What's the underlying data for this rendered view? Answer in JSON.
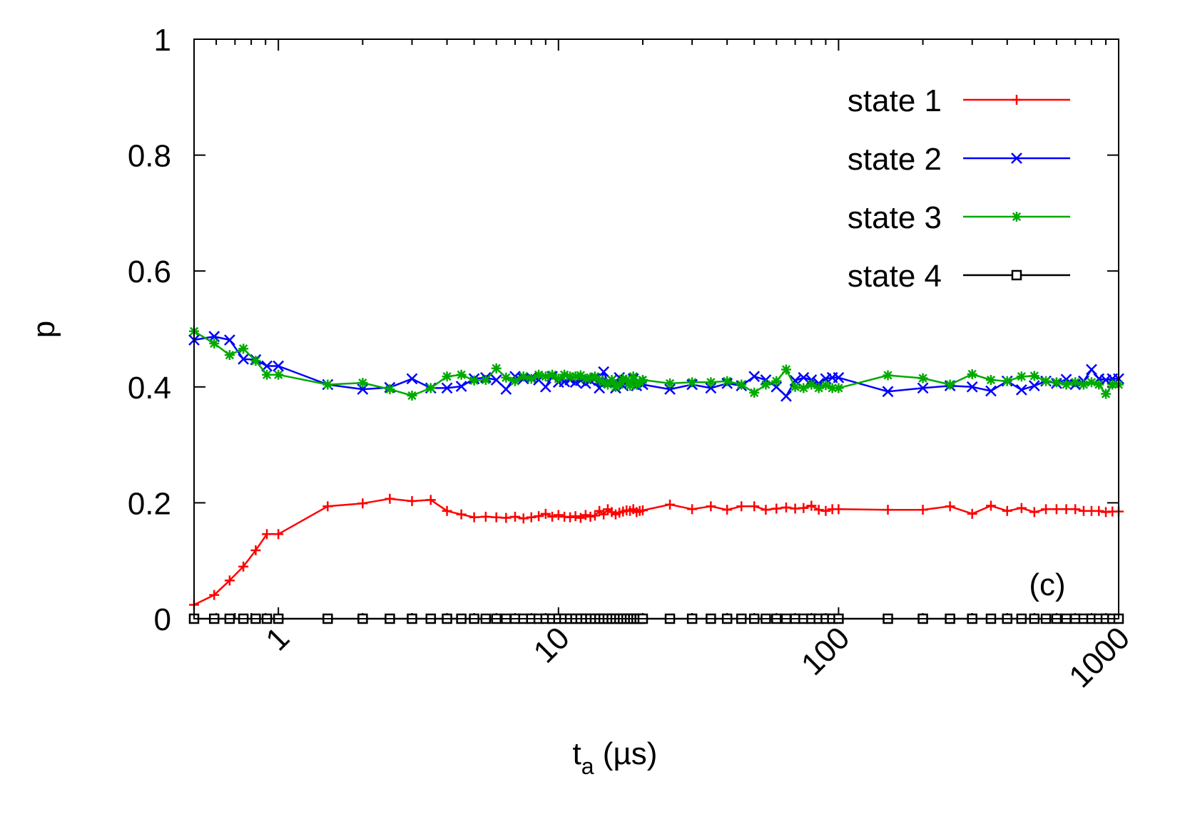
{
  "chart_data": {
    "type": "line",
    "xlabel_main": "t",
    "xlabel_sub": "a",
    "xlabel_rest": " (µs)",
    "ylabel": "p",
    "xscale": "log",
    "xlim": [
      0.5,
      1000
    ],
    "ylim": [
      0,
      1
    ],
    "x_ticks": [
      1,
      10,
      100,
      1000
    ],
    "x_tick_labels": [
      "1",
      "10",
      "100",
      "1000"
    ],
    "y_ticks": [
      0,
      0.2,
      0.4,
      0.6,
      0.8,
      1
    ],
    "y_tick_labels": [
      "0",
      "0.2",
      "0.4",
      "0.6",
      "0.8",
      "1"
    ],
    "legend_position": "top-right",
    "annotation": "(c)",
    "series": [
      {
        "name": "state 1",
        "color": "#ff0000",
        "marker": "plus",
        "x": [
          0.5,
          0.59,
          0.67,
          0.75,
          0.83,
          0.91,
          1.0,
          1.5,
          2.0,
          2.5,
          3.0,
          3.5,
          4.0,
          4.5,
          5.0,
          5.5,
          6.0,
          6.5,
          7.0,
          7.5,
          8.0,
          8.5,
          9.0,
          9.5,
          10,
          10.5,
          11,
          11.5,
          12,
          12.5,
          13,
          13.5,
          14,
          14.5,
          15,
          15.5,
          16,
          16.5,
          17,
          17.5,
          18,
          18.5,
          19,
          19.5,
          20,
          25,
          30,
          35,
          40,
          45,
          50,
          55,
          60,
          65,
          70,
          75,
          80,
          85,
          90,
          95,
          100,
          150,
          200,
          250,
          300,
          350,
          400,
          450,
          500,
          550,
          600,
          650,
          700,
          750,
          800,
          850,
          900,
          950,
          1000
        ],
        "y": [
          0.024,
          0.041,
          0.066,
          0.09,
          0.118,
          0.146,
          0.146,
          0.194,
          0.199,
          0.207,
          0.203,
          0.205,
          0.186,
          0.18,
          0.175,
          0.176,
          0.175,
          0.174,
          0.176,
          0.173,
          0.175,
          0.177,
          0.181,
          0.176,
          0.179,
          0.176,
          0.175,
          0.177,
          0.174,
          0.179,
          0.176,
          0.178,
          0.186,
          0.18,
          0.189,
          0.184,
          0.18,
          0.183,
          0.185,
          0.187,
          0.186,
          0.189,
          0.184,
          0.186,
          0.187,
          0.197,
          0.189,
          0.194,
          0.188,
          0.194,
          0.194,
          0.188,
          0.19,
          0.192,
          0.19,
          0.191,
          0.195,
          0.188,
          0.186,
          0.189,
          0.189,
          0.188,
          0.188,
          0.194,
          0.181,
          0.195,
          0.186,
          0.191,
          0.184,
          0.189,
          0.189,
          0.189,
          0.189,
          0.186,
          0.186,
          0.186,
          0.184,
          0.185,
          0.185
        ]
      },
      {
        "name": "state 2",
        "color": "#0000ff",
        "marker": "cross",
        "x": [
          0.5,
          0.59,
          0.67,
          0.75,
          0.83,
          0.91,
          1.0,
          1.5,
          2.0,
          2.5,
          3.0,
          3.5,
          4.0,
          4.5,
          5.0,
          5.5,
          6.0,
          6.5,
          7.0,
          7.5,
          8.0,
          8.5,
          9.0,
          9.5,
          10,
          10.5,
          11,
          11.5,
          12,
          12.5,
          13,
          13.5,
          14,
          14.5,
          15,
          15.5,
          16,
          16.5,
          17,
          17.5,
          18,
          18.5,
          19,
          19.5,
          20,
          25,
          30,
          35,
          40,
          45,
          50,
          55,
          60,
          65,
          70,
          75,
          80,
          85,
          90,
          95,
          100,
          150,
          200,
          250,
          300,
          350,
          400,
          450,
          500,
          550,
          600,
          650,
          700,
          750,
          800,
          850,
          900,
          950,
          1000
        ],
        "y": [
          0.481,
          0.487,
          0.481,
          0.448,
          0.447,
          0.436,
          0.436,
          0.404,
          0.396,
          0.399,
          0.414,
          0.398,
          0.398,
          0.401,
          0.414,
          0.416,
          0.412,
          0.396,
          0.418,
          0.414,
          0.416,
          0.412,
          0.4,
          0.418,
          0.408,
          0.409,
          0.412,
          0.408,
          0.411,
          0.406,
          0.411,
          0.414,
          0.398,
          0.426,
          0.408,
          0.412,
          0.398,
          0.416,
          0.402,
          0.412,
          0.408,
          0.414,
          0.402,
          0.408,
          0.404,
          0.396,
          0.404,
          0.398,
          0.406,
          0.402,
          0.418,
          0.412,
          0.4,
          0.384,
          0.411,
          0.416,
          0.412,
          0.406,
          0.414,
          0.416,
          0.416,
          0.392,
          0.398,
          0.402,
          0.4,
          0.393,
          0.41,
          0.395,
          0.402,
          0.41,
          0.406,
          0.413,
          0.404,
          0.41,
          0.43,
          0.414,
          0.412,
          0.414,
          0.414
        ]
      },
      {
        "name": "state 3",
        "color": "#00aa00",
        "marker": "star",
        "x": [
          0.5,
          0.59,
          0.67,
          0.75,
          0.83,
          0.91,
          1.0,
          1.5,
          2.0,
          2.5,
          3.0,
          3.5,
          4.0,
          4.5,
          5.0,
          5.5,
          6.0,
          6.5,
          7.0,
          7.5,
          8.0,
          8.5,
          9.0,
          9.5,
          10,
          10.5,
          11,
          11.5,
          12,
          12.5,
          13,
          13.5,
          14,
          14.5,
          15,
          15.5,
          16,
          16.5,
          17,
          17.5,
          18,
          18.5,
          19,
          19.5,
          20,
          25,
          30,
          35,
          40,
          45,
          50,
          55,
          60,
          65,
          70,
          75,
          80,
          85,
          90,
          95,
          100,
          150,
          200,
          250,
          300,
          350,
          400,
          450,
          500,
          550,
          600,
          650,
          700,
          750,
          800,
          850,
          900,
          950,
          1000
        ],
        "y": [
          0.496,
          0.475,
          0.455,
          0.466,
          0.445,
          0.421,
          0.421,
          0.404,
          0.407,
          0.396,
          0.385,
          0.398,
          0.418,
          0.421,
          0.411,
          0.412,
          0.432,
          0.416,
          0.41,
          0.418,
          0.414,
          0.421,
          0.418,
          0.421,
          0.414,
          0.421,
          0.418,
          0.418,
          0.42,
          0.414,
          0.416,
          0.418,
          0.412,
          0.408,
          0.404,
          0.412,
          0.4,
          0.404,
          0.414,
          0.412,
          0.402,
          0.418,
          0.404,
          0.408,
          0.412,
          0.406,
          0.408,
          0.408,
          0.41,
          0.404,
          0.39,
          0.404,
          0.41,
          0.43,
          0.4,
          0.398,
          0.404,
          0.398,
          0.403,
          0.398,
          0.398,
          0.42,
          0.415,
          0.404,
          0.422,
          0.412,
          0.41,
          0.418,
          0.419,
          0.41,
          0.408,
          0.404,
          0.408,
          0.404,
          0.408,
          0.404,
          0.388,
          0.404,
          0.404
        ]
      },
      {
        "name": "state 4",
        "color": "#000000",
        "marker": "square",
        "x": [
          0.5,
          0.59,
          0.67,
          0.75,
          0.83,
          0.91,
          1.0,
          1.5,
          2.0,
          2.5,
          3.0,
          3.5,
          4.0,
          4.5,
          5.0,
          5.5,
          6.0,
          6.5,
          7.0,
          7.5,
          8.0,
          8.5,
          9.0,
          9.5,
          10,
          10.5,
          11,
          11.5,
          12,
          12.5,
          13,
          13.5,
          14,
          14.5,
          15,
          15.5,
          16,
          16.5,
          17,
          17.5,
          18,
          18.5,
          19,
          19.5,
          20,
          25,
          30,
          35,
          40,
          45,
          50,
          55,
          60,
          65,
          70,
          75,
          80,
          85,
          90,
          95,
          100,
          150,
          200,
          250,
          300,
          350,
          400,
          450,
          500,
          550,
          600,
          650,
          700,
          750,
          800,
          850,
          900,
          950,
          1000
        ],
        "y": [
          0,
          0,
          0,
          0,
          0,
          0,
          0,
          0,
          0,
          0,
          0,
          0,
          0,
          0,
          0,
          0,
          0,
          0,
          0,
          0,
          0,
          0,
          0,
          0,
          0,
          0,
          0,
          0,
          0,
          0,
          0,
          0,
          0,
          0,
          0,
          0,
          0,
          0,
          0,
          0,
          0,
          0,
          0,
          0,
          0,
          0,
          0,
          0,
          0,
          0,
          0,
          0,
          0,
          0,
          0,
          0,
          0,
          0,
          0,
          0,
          0,
          0,
          0,
          0,
          0,
          0,
          0,
          0,
          0,
          0,
          0,
          0,
          0,
          0,
          0,
          0,
          0,
          0,
          0
        ]
      }
    ]
  }
}
